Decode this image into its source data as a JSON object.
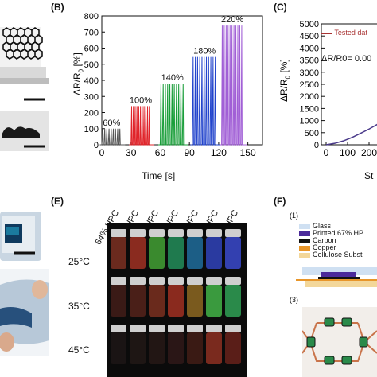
{
  "panels": {
    "B": "(B)",
    "C": "(C)",
    "E": "(E)",
    "F": "(F)"
  },
  "chart_data": [
    {
      "type": "line",
      "panel": "B",
      "xlabel": "Time [s]",
      "ylabel": "ΔR/R0 [%]",
      "xlim": [
        0,
        165
      ],
      "ylim": [
        0,
        800
      ],
      "xticks": [
        0,
        30,
        60,
        90,
        120,
        150
      ],
      "yticks": [
        0,
        100,
        200,
        300,
        400,
        500,
        600,
        700,
        800
      ],
      "series": [
        {
          "name": "60%",
          "color": "#555555",
          "x_start": 0,
          "x_end": 20,
          "peak": 100,
          "cycles": 9
        },
        {
          "name": "100%",
          "color": "#e0242a",
          "x_start": 30,
          "x_end": 50,
          "peak": 240,
          "cycles": 11
        },
        {
          "name": "140%",
          "color": "#1a9e3a",
          "x_start": 60,
          "x_end": 85,
          "peak": 380,
          "cycles": 11
        },
        {
          "name": "180%",
          "color": "#2244cc",
          "x_start": 93,
          "x_end": 118,
          "peak": 545,
          "cycles": 11
        },
        {
          "name": "220%",
          "color": "#a15fd6",
          "x_start": 123,
          "x_end": 145,
          "peak": 740,
          "cycles": 11
        }
      ],
      "annotations": [
        "60%",
        "100%",
        "140%",
        "180%",
        "220%"
      ]
    },
    {
      "type": "line",
      "panel": "C",
      "xlabel": "St",
      "ylabel": "ΔR/R0 [%]",
      "xticks": [
        0,
        100,
        200
      ],
      "yticks": [
        0,
        500,
        1000,
        1500,
        2000,
        2500,
        3000,
        3500,
        4000,
        4500,
        5000
      ],
      "ylim": [
        0,
        5000
      ],
      "legend": "Tested dat",
      "equation": "ΔR/R0= 0.00",
      "series": [
        {
          "name": "Tested dat",
          "color": "#a83232",
          "x": [
            0,
            40,
            80,
            120,
            160,
            200,
            240,
            270
          ],
          "y": [
            0,
            60,
            160,
            300,
            470,
            650,
            850,
            1000
          ]
        }
      ]
    }
  ],
  "panel_E": {
    "columns": [
      "64% HPC",
      "65% HPC",
      "66% HPC",
      "67% HPC",
      "68% HPC",
      "69% HPC",
      "70% HPC"
    ],
    "rows": [
      "25°C",
      "35°C",
      "45°C"
    ]
  },
  "panel_F": {
    "sub1": "(1)",
    "sub3": "(3)",
    "legend": [
      {
        "label": "Glass",
        "color": "#cfe0f2"
      },
      {
        "label": "Printed 67% HP",
        "color": "#4b2a9a"
      },
      {
        "label": "Carbon",
        "color": "#111111"
      },
      {
        "label": "Copper",
        "color": "#e8962a"
      },
      {
        "label": "Cellulose Subst",
        "color": "#f3d79a"
      }
    ]
  }
}
